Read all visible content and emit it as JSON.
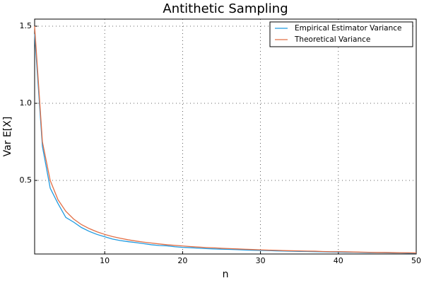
{
  "chart_data": {
    "type": "line",
    "title": "Antithetic Sampling",
    "x_label": "n",
    "y_label": "Var E[X]",
    "x": [
      1,
      2,
      3,
      4,
      5,
      6,
      7,
      8,
      9,
      10,
      11,
      12,
      13,
      14,
      15,
      16,
      17,
      18,
      19,
      20,
      21,
      22,
      23,
      24,
      25,
      26,
      27,
      28,
      29,
      30,
      31,
      32,
      33,
      34,
      35,
      36,
      37,
      38,
      39,
      40,
      41,
      42,
      43,
      44,
      45,
      46,
      47,
      48,
      49,
      50
    ],
    "series": [
      {
        "name": "Empirical Estimator Variance",
        "color": "#1f9ae0",
        "values": [
          1.45,
          0.72,
          0.45,
          0.35,
          0.26,
          0.23,
          0.195,
          0.17,
          0.15,
          0.135,
          0.12,
          0.11,
          0.103,
          0.097,
          0.09,
          0.083,
          0.078,
          0.076,
          0.07,
          0.066,
          0.064,
          0.061,
          0.058,
          0.056,
          0.054,
          0.053,
          0.051,
          0.049,
          0.047,
          0.046,
          0.045,
          0.043,
          0.042,
          0.041,
          0.04,
          0.039,
          0.038,
          0.037,
          0.036,
          0.035,
          0.034,
          0.034,
          0.033,
          0.032,
          0.032,
          0.031,
          0.03,
          0.03,
          0.029,
          0.029
        ]
      },
      {
        "name": "Theoretical Variance",
        "color": "#e26f46",
        "values": [
          1.5,
          0.75,
          0.5,
          0.375,
          0.3,
          0.25,
          0.214,
          0.188,
          0.167,
          0.15,
          0.136,
          0.125,
          0.115,
          0.107,
          0.1,
          0.094,
          0.088,
          0.083,
          0.079,
          0.075,
          0.071,
          0.068,
          0.065,
          0.063,
          0.06,
          0.058,
          0.056,
          0.054,
          0.052,
          0.05,
          0.048,
          0.047,
          0.045,
          0.044,
          0.043,
          0.042,
          0.041,
          0.039,
          0.038,
          0.038,
          0.037,
          0.036,
          0.035,
          0.034,
          0.033,
          0.033,
          0.032,
          0.031,
          0.031,
          0.03
        ]
      }
    ],
    "xlim": [
      1,
      50
    ],
    "ylim": [
      0.023,
      1.546
    ],
    "xticks": [
      10,
      20,
      30,
      40,
      50
    ],
    "yticks": [
      {
        "value": 0.5,
        "label": "0.5"
      },
      {
        "value": 1.0,
        "label": "1.0"
      },
      {
        "value": 1.5,
        "label": "1.5"
      }
    ],
    "grid": true,
    "legend": "top-right"
  }
}
